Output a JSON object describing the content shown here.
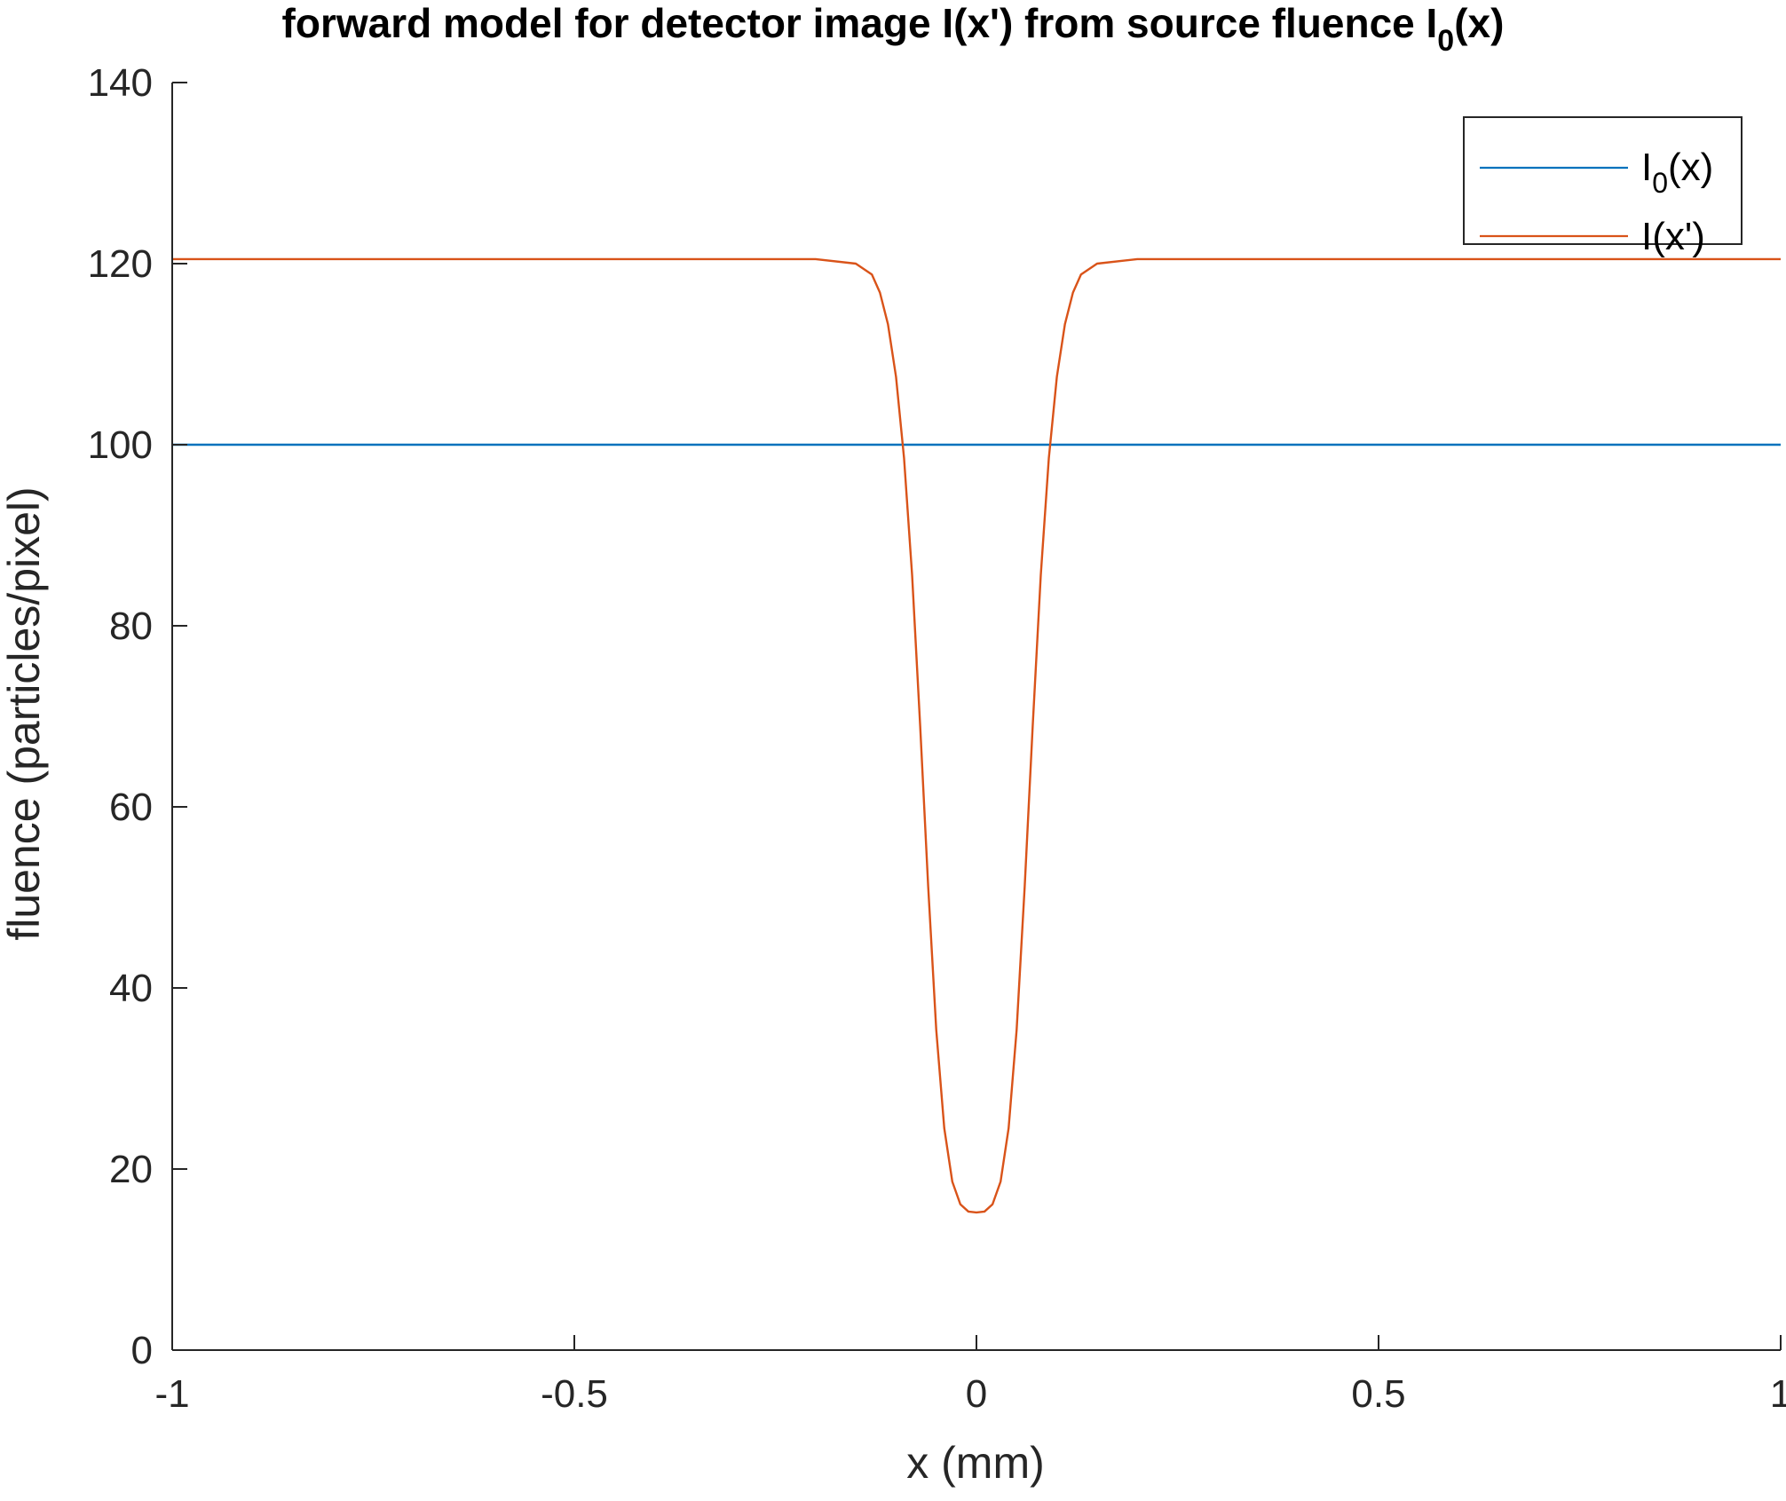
{
  "chart_data": {
    "type": "line",
    "title_main": "forward model for detector image I(x') from source fluence I",
    "title_sub": "0",
    "title_tail": "(x)",
    "xlabel": "x (mm)",
    "ylabel": "fluence (particles/pixel)",
    "xlim": [
      -1,
      1
    ],
    "ylim": [
      0,
      140
    ],
    "xticks": [
      -1,
      -0.5,
      0,
      0.5,
      1
    ],
    "xtick_labels": [
      "-1",
      "-0.5",
      "0",
      "0.5",
      "1"
    ],
    "yticks": [
      0,
      20,
      40,
      60,
      80,
      100,
      120,
      140
    ],
    "ytick_labels": [
      "0",
      "20",
      "40",
      "60",
      "80",
      "100",
      "120",
      "140"
    ],
    "grid": false,
    "legend_position": "top-right",
    "series": [
      {
        "name_main": "I",
        "name_sub": "0",
        "name_tail": "(x)",
        "color": "#0072BD",
        "x": [
          -1,
          1
        ],
        "y": [
          100,
          100
        ]
      },
      {
        "name": "I(x')",
        "color": "#D95319",
        "x": [
          -1,
          -0.3,
          -0.2,
          -0.15,
          -0.13,
          -0.12,
          -0.11,
          -0.1,
          -0.09,
          -0.08,
          -0.07,
          -0.06,
          -0.05,
          -0.04,
          -0.03,
          -0.02,
          -0.01,
          0,
          0.01,
          0.02,
          0.03,
          0.04,
          0.05,
          0.06,
          0.07,
          0.08,
          0.09,
          0.1,
          0.11,
          0.12,
          0.13,
          0.15,
          0.2,
          0.3,
          1
        ],
        "y": [
          120.5,
          120.5,
          120.5,
          120,
          118.8,
          116.8,
          113.3,
          107.5,
          98.5,
          85.6,
          69.0,
          51.2,
          35.4,
          24.5,
          18.6,
          16.1,
          15.3,
          15.2,
          15.3,
          16.1,
          18.6,
          24.5,
          35.4,
          51.2,
          69.0,
          85.6,
          98.5,
          107.5,
          113.3,
          116.8,
          118.8,
          120,
          120.5,
          120.5,
          120.5
        ]
      }
    ]
  }
}
